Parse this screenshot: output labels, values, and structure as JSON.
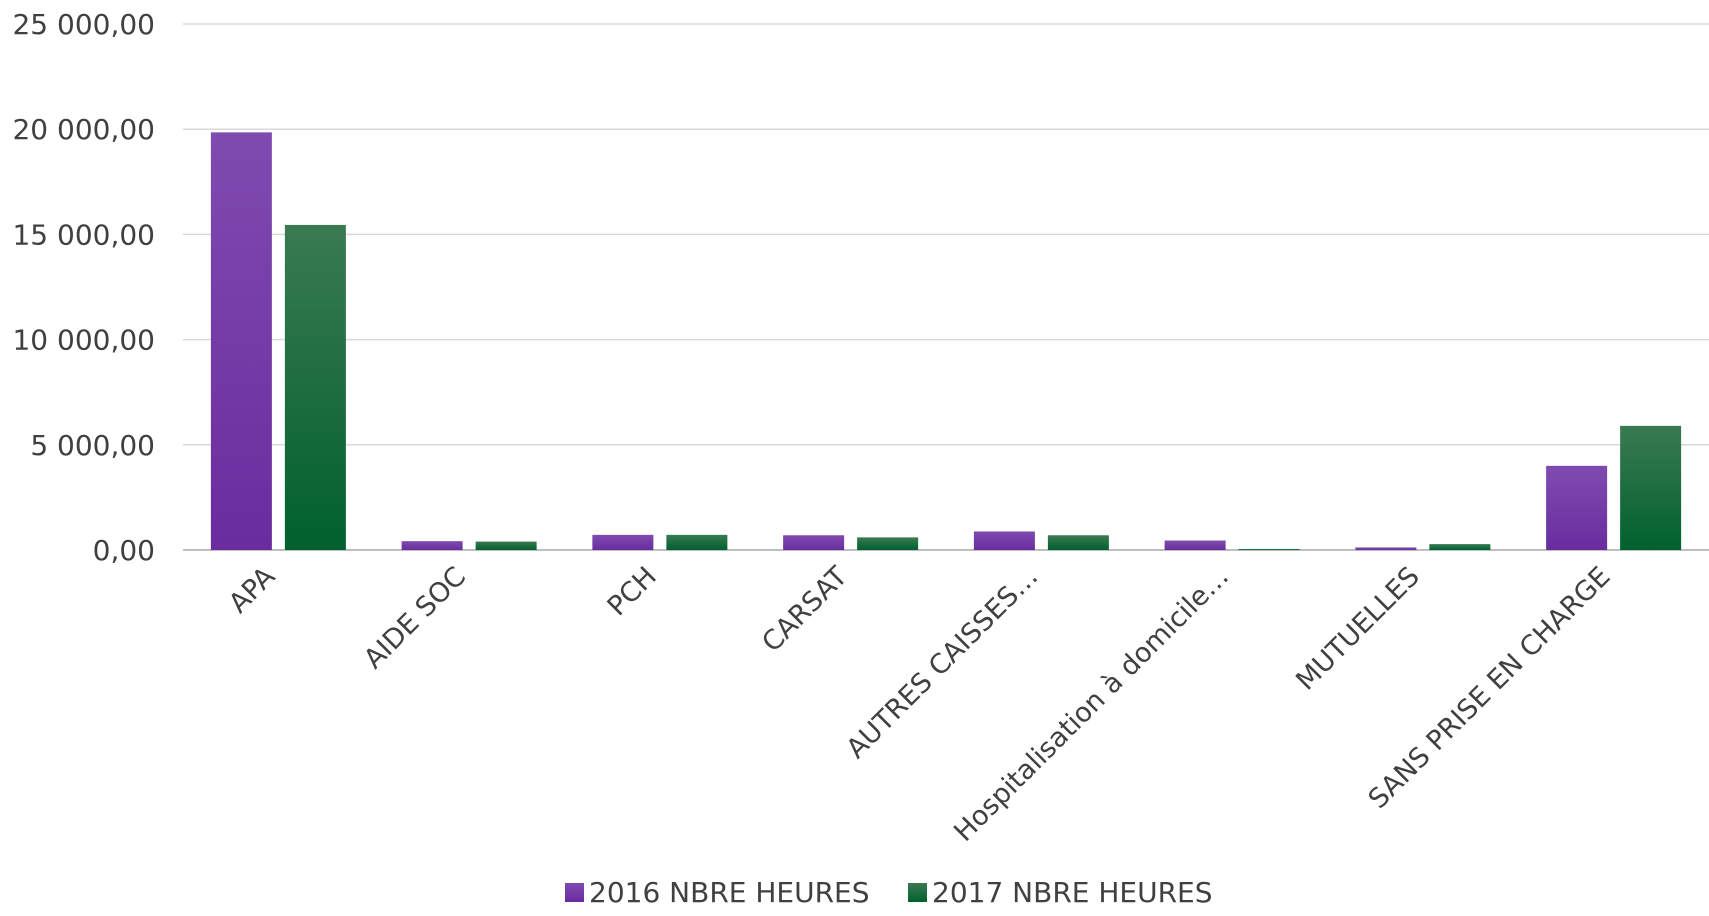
{
  "chart_data": {
    "type": "bar",
    "title": "",
    "xlabel": "",
    "ylabel": "",
    "categories": [
      "APA",
      "AIDE SOC",
      "PCH",
      "CARSAT",
      "AUTRES CAISSES…",
      "Hospitalisation à domicile…",
      "MUTUELLES",
      "SANS PRISE EN CHARGE"
    ],
    "series": [
      {
        "name": "2016 NBRE HEURES",
        "color": "#7030a0",
        "values": [
          19850,
          420,
          720,
          700,
          880,
          450,
          120,
          4000
        ]
      },
      {
        "name": "2017 NBRE HEURES",
        "color": "#1e6b3a",
        "values": [
          15450,
          400,
          720,
          600,
          700,
          40,
          280,
          5900
        ]
      }
    ],
    "ylim": [
      0,
      25000
    ],
    "yticks": [
      0,
      5000,
      10000,
      15000,
      20000,
      25000
    ],
    "ytick_labels": [
      "0,00",
      "5 000,00",
      "10 000,00",
      "15 000,00",
      "20 000,00",
      "25 000,00"
    ],
    "grid": true,
    "legend": "bottom-center"
  }
}
